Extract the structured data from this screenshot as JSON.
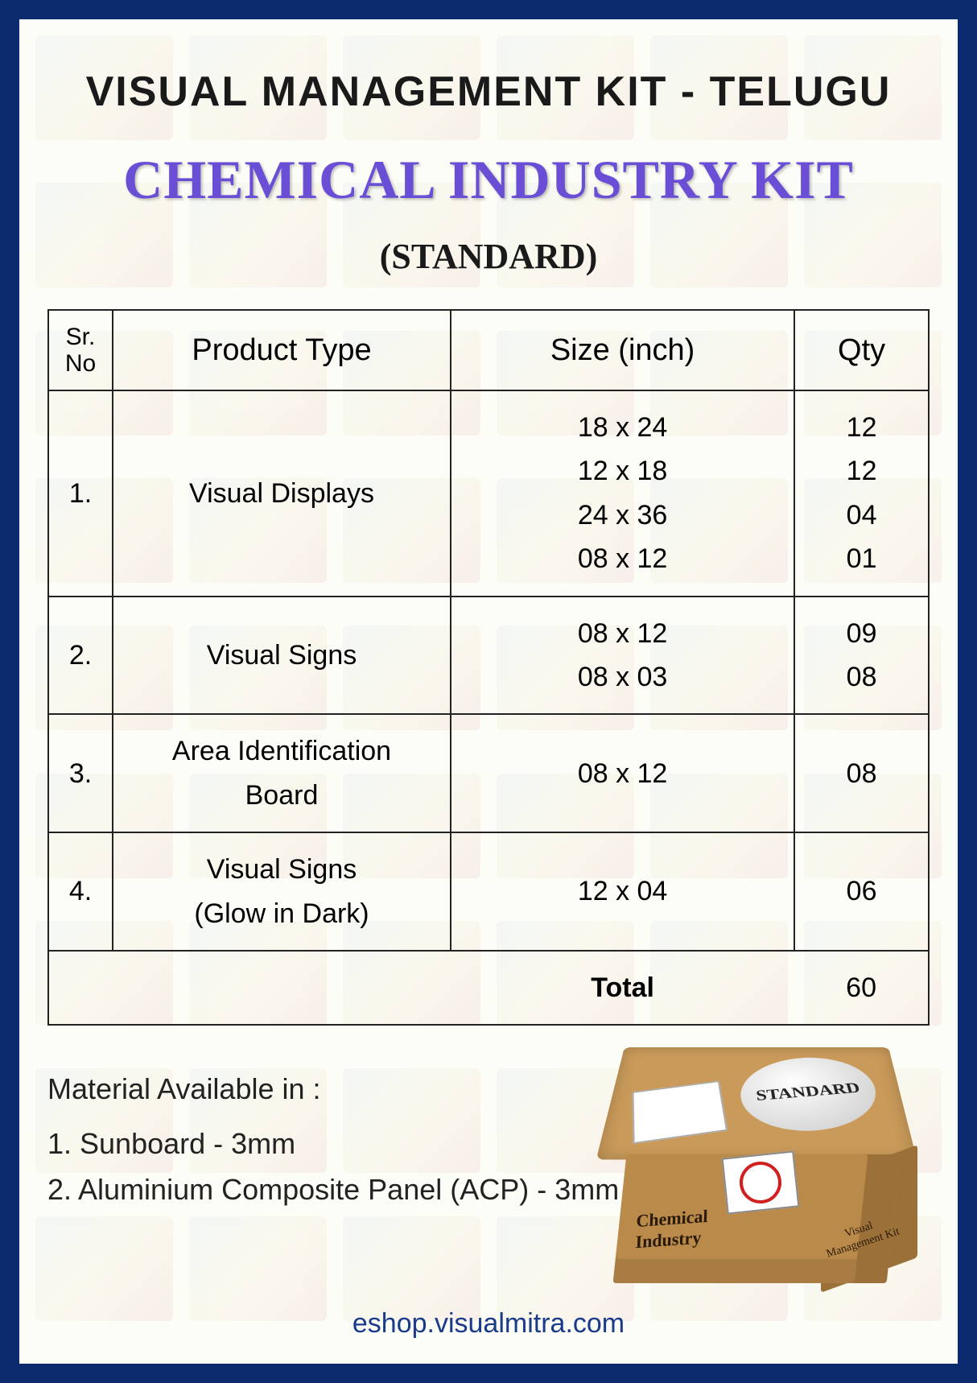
{
  "header": {
    "line1": "VISUAL MANAGEMENT KIT - TELUGU",
    "line2": "CHEMICAL INDUSTRY KIT",
    "line3": "(STANDARD)"
  },
  "table": {
    "columns": {
      "sr": "Sr. No",
      "pt": "Product Type",
      "size": "Size (inch)",
      "qty": "Qty"
    },
    "rows": [
      {
        "sr": "1.",
        "pt": "Visual Displays",
        "sizes": "18 x 24\n12 x 18\n24 x 36\n08 x 12",
        "qtys": "12\n12\n04\n01"
      },
      {
        "sr": "2.",
        "pt": "Visual Signs",
        "sizes": "08 x 12\n08 x 03",
        "qtys": "09\n08"
      },
      {
        "sr": "3.",
        "pt": "Area Identification\nBoard",
        "sizes": "08 x 12",
        "qtys": "08"
      },
      {
        "sr": "4.",
        "pt": "Visual Signs\n(Glow in Dark)",
        "sizes": "12 x 04",
        "qtys": "06"
      }
    ],
    "total_label": "Total",
    "total_value": "60"
  },
  "material": {
    "heading": "Material Available in :",
    "line1": "1. Sunboard - 3mm",
    "line2": "2. Aluminium Composite Panel  (ACP) - 3mm"
  },
  "box": {
    "lid_label": "STANDARD",
    "front_label": "Chemical\nIndustry",
    "side_label": "Visual\nManagement Kit"
  },
  "footer": "eshop.visualmitra.com",
  "colors": {
    "border": "#0b2a6e",
    "title2": "#6a4fd6",
    "table_border": "#222222",
    "footer": "#1a3a8a"
  }
}
